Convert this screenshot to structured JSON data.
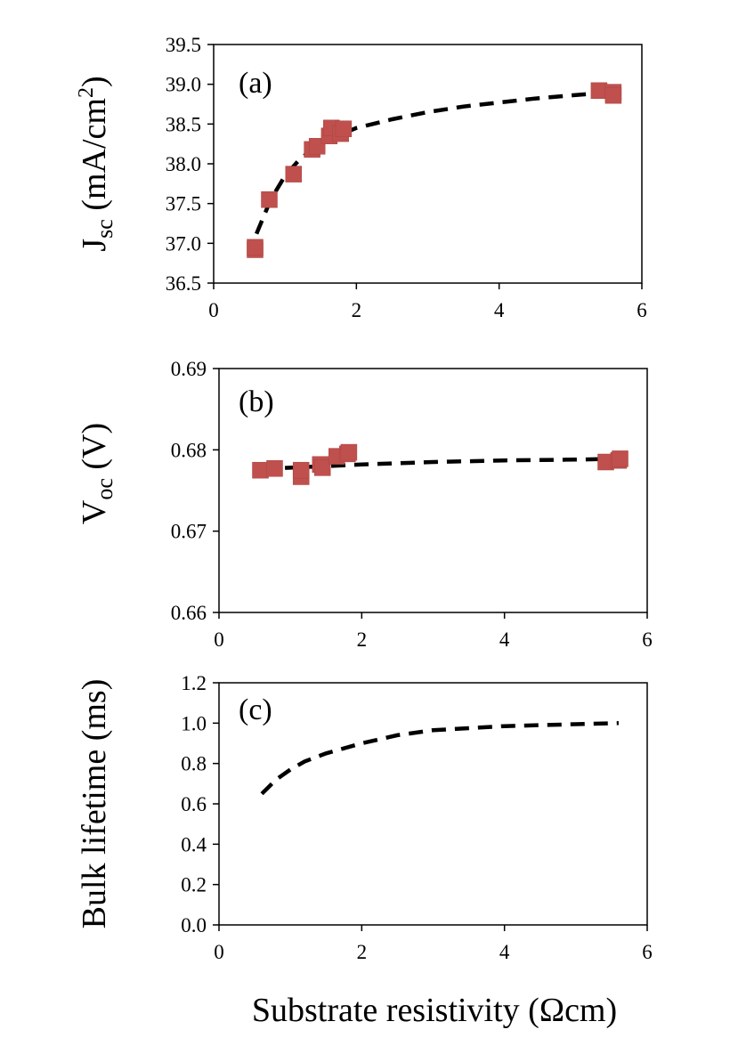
{
  "chart_data": [
    {
      "type": "scatter",
      "panel_label": "(a)",
      "ylabel_main": "J",
      "ylabel_sub": "sc",
      "ylabel_rest": " (mA/cm",
      "ylabel_sup": "2",
      "ylabel_end": ")",
      "xlim": [
        0,
        6
      ],
      "ylim": [
        36.5,
        39.5
      ],
      "xticks": [
        "0",
        "2",
        "4",
        "6"
      ],
      "yticks": [
        "36.5",
        "37.0",
        "37.5",
        "38.0",
        "38.5",
        "39.0",
        "39.5"
      ],
      "xtick_values": [
        0,
        2,
        4,
        6
      ],
      "ytick_values": [
        36.5,
        37.0,
        37.5,
        38.0,
        38.5,
        39.0,
        39.5
      ],
      "series": [
        {
          "kind": "markers",
          "color": "#c0504d",
          "x": [
            0.58,
            0.58,
            0.78,
            1.12,
            1.38,
            1.45,
            1.62,
            1.65,
            1.78,
            1.82,
            5.4,
            5.6,
            5.6
          ],
          "y": [
            36.92,
            36.95,
            37.55,
            37.87,
            38.18,
            38.22,
            38.35,
            38.45,
            38.38,
            38.44,
            38.92,
            38.9,
            38.86
          ]
        },
        {
          "kind": "dashed-fit",
          "color": "#000000",
          "x": [
            0.6,
            0.8,
            1.0,
            1.2,
            1.5,
            2.0,
            2.5,
            3.0,
            3.5,
            4.0,
            4.5,
            5.0,
            5.6
          ],
          "y": [
            37.12,
            37.55,
            37.85,
            38.05,
            38.27,
            38.45,
            38.56,
            38.65,
            38.72,
            38.77,
            38.82,
            38.86,
            38.9
          ]
        }
      ]
    },
    {
      "type": "scatter",
      "panel_label": "(b)",
      "ylabel_main": "V",
      "ylabel_sub": "oc",
      "ylabel_rest": " (V)",
      "xlim": [
        0,
        6
      ],
      "ylim": [
        0.66,
        0.69
      ],
      "xticks": [
        "0",
        "2",
        "4",
        "6"
      ],
      "yticks": [
        "0.66",
        "0.67",
        "0.68",
        "0.69"
      ],
      "xtick_values": [
        0,
        2,
        4,
        6
      ],
      "ytick_values": [
        0.66,
        0.67,
        0.68,
        0.69
      ],
      "series": [
        {
          "kind": "markers",
          "color": "#c0504d",
          "x": [
            0.58,
            0.78,
            1.15,
            1.15,
            1.42,
            1.45,
            1.65,
            1.8,
            1.82,
            5.42,
            5.6,
            5.62
          ],
          "y": [
            0.6775,
            0.6777,
            0.6767,
            0.6775,
            0.6782,
            0.6778,
            0.6792,
            0.6795,
            0.6797,
            0.6785,
            0.6787,
            0.6789
          ]
        },
        {
          "kind": "dashed-fit",
          "color": "#000000",
          "x": [
            0.6,
            1.0,
            1.5,
            2.0,
            3.0,
            4.0,
            5.0,
            5.6
          ],
          "y": [
            0.67765,
            0.6778,
            0.678,
            0.6782,
            0.6785,
            0.6787,
            0.6788,
            0.6789
          ]
        }
      ]
    },
    {
      "type": "line",
      "panel_label": "(c)",
      "ylabel": "Bulk lifetime (ms)",
      "xlabel": "Substrate resistivity (Ωcm)",
      "xlim": [
        0,
        6
      ],
      "ylim": [
        0.0,
        1.2
      ],
      "xticks": [
        "0",
        "2",
        "4",
        "6"
      ],
      "yticks": [
        "0.0",
        "0.2",
        "0.4",
        "0.6",
        "0.8",
        "1.0",
        "1.2"
      ],
      "xtick_values": [
        0,
        2,
        4,
        6
      ],
      "ytick_values": [
        0.0,
        0.2,
        0.4,
        0.6,
        0.8,
        1.0,
        1.2
      ],
      "series": [
        {
          "kind": "dashed-fit",
          "color": "#000000",
          "x": [
            0.6,
            0.8,
            1.0,
            1.2,
            1.5,
            2.0,
            2.5,
            3.0,
            3.5,
            4.0,
            4.5,
            5.0,
            5.6
          ],
          "y": [
            0.65,
            0.72,
            0.77,
            0.81,
            0.85,
            0.9,
            0.94,
            0.965,
            0.975,
            0.985,
            0.99,
            0.995,
            1.0
          ]
        }
      ]
    }
  ]
}
